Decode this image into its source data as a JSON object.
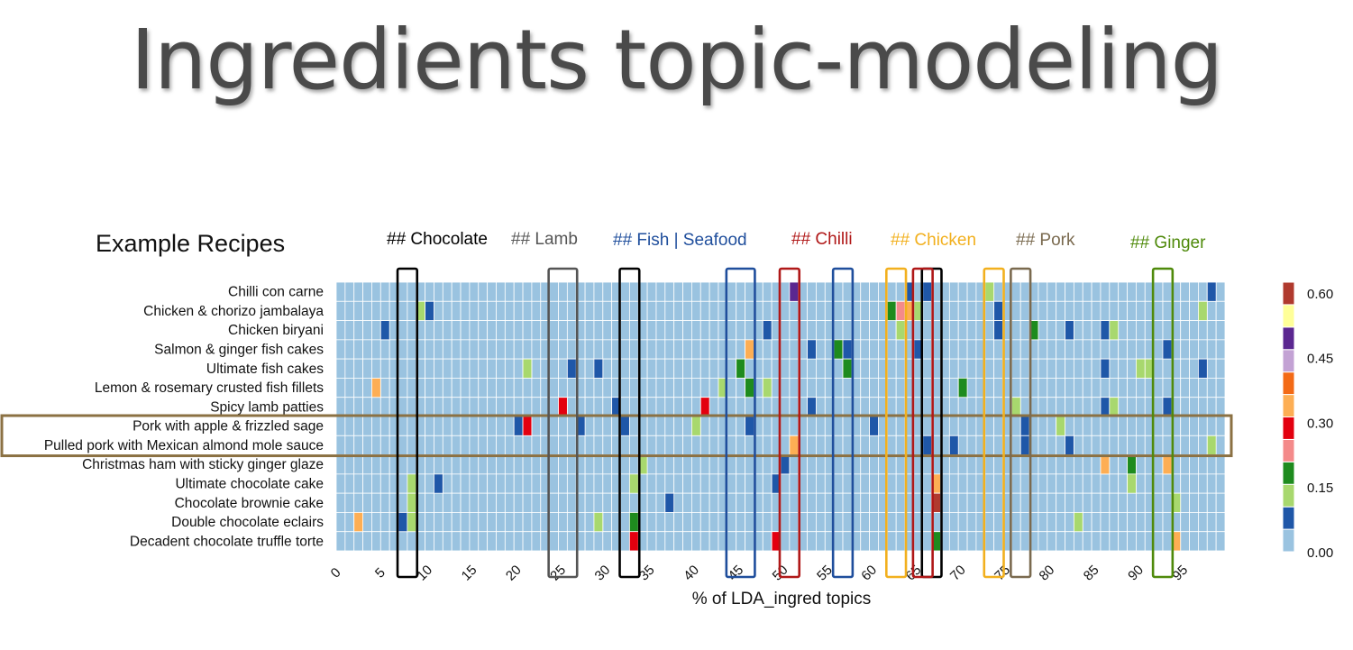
{
  "slide": {
    "title": "Ingredients topic-modeling",
    "side_label": "Example Recipes"
  },
  "chart_data": {
    "type": "heatmap",
    "xlabel": "% of LDA_ingred topics",
    "ylabel": "",
    "x_range": [
      0,
      100
    ],
    "x_ticks": [
      0,
      5,
      10,
      15,
      20,
      25,
      30,
      35,
      40,
      45,
      50,
      55,
      60,
      65,
      70,
      75,
      80,
      85,
      90,
      95
    ],
    "rows": [
      "Chilli con carne",
      "Chicken & chorizo jambalaya",
      "Chicken biryani",
      "Salmon & ginger fish cakes",
      "Ultimate fish cakes",
      "Lemon & rosemary crusted fish fillets",
      "Spicy lamb patties",
      "Pork with apple & frizzled sage",
      "Pulled pork with Mexican almond mole sauce",
      "Christmas ham with sticky ginger glaze",
      "Ultimate chocolate cake",
      "Chocolate brownie cake",
      "Double chocolate eclairs",
      "Decadent chocolate truffle torte"
    ],
    "background_value": 0.0,
    "cells": [
      [
        0,
        51,
        0.5
      ],
      [
        0,
        64,
        0.05
      ],
      [
        0,
        66,
        0.05
      ],
      [
        0,
        73,
        0.12
      ],
      [
        0,
        98,
        0.05
      ],
      [
        1,
        9,
        0.12
      ],
      [
        1,
        10,
        0.05
      ],
      [
        1,
        62,
        0.15
      ],
      [
        1,
        63,
        0.2
      ],
      [
        1,
        64,
        0.3
      ],
      [
        1,
        65,
        0.12
      ],
      [
        1,
        74,
        0.05
      ],
      [
        1,
        97,
        0.12
      ],
      [
        2,
        5,
        0.05
      ],
      [
        2,
        48,
        0.05
      ],
      [
        2,
        63,
        0.12
      ],
      [
        2,
        74,
        0.05
      ],
      [
        2,
        78,
        0.15
      ],
      [
        2,
        82,
        0.05
      ],
      [
        2,
        86,
        0.05
      ],
      [
        2,
        87,
        0.12
      ],
      [
        3,
        46,
        0.35
      ],
      [
        3,
        53,
        0.05
      ],
      [
        3,
        56,
        0.15
      ],
      [
        3,
        57,
        0.05
      ],
      [
        3,
        65,
        0.05
      ],
      [
        3,
        93,
        0.05
      ],
      [
        4,
        21,
        0.12
      ],
      [
        4,
        26,
        0.05
      ],
      [
        4,
        29,
        0.05
      ],
      [
        4,
        45,
        0.15
      ],
      [
        4,
        57,
        0.15
      ],
      [
        4,
        86,
        0.05
      ],
      [
        4,
        90,
        0.12
      ],
      [
        4,
        91,
        0.12
      ],
      [
        4,
        97,
        0.05
      ],
      [
        5,
        4,
        0.3
      ],
      [
        5,
        43,
        0.12
      ],
      [
        5,
        46,
        0.15
      ],
      [
        5,
        48,
        0.12
      ],
      [
        5,
        70,
        0.15
      ],
      [
        6,
        25,
        0.25
      ],
      [
        6,
        31,
        0.05
      ],
      [
        6,
        41,
        0.25
      ],
      [
        6,
        53,
        0.05
      ],
      [
        6,
        76,
        0.12
      ],
      [
        6,
        86,
        0.05
      ],
      [
        6,
        87,
        0.12
      ],
      [
        6,
        93,
        0.05
      ],
      [
        7,
        20,
        0.05
      ],
      [
        7,
        21,
        0.25
      ],
      [
        7,
        27,
        0.05
      ],
      [
        7,
        32,
        0.05
      ],
      [
        7,
        40,
        0.12
      ],
      [
        7,
        46,
        0.05
      ],
      [
        7,
        60,
        0.05
      ],
      [
        7,
        77,
        0.05
      ],
      [
        7,
        81,
        0.12
      ],
      [
        8,
        51,
        0.3
      ],
      [
        8,
        66,
        0.05
      ],
      [
        8,
        69,
        0.05
      ],
      [
        8,
        77,
        0.05
      ],
      [
        8,
        82,
        0.05
      ],
      [
        8,
        98,
        0.12
      ],
      [
        9,
        34,
        0.12
      ],
      [
        9,
        50,
        0.05
      ],
      [
        9,
        86,
        0.3
      ],
      [
        9,
        89,
        0.15
      ],
      [
        9,
        93,
        0.3
      ],
      [
        10,
        8,
        0.12
      ],
      [
        10,
        11,
        0.05
      ],
      [
        10,
        33,
        0.12
      ],
      [
        10,
        49,
        0.05
      ],
      [
        10,
        67,
        0.35
      ],
      [
        10,
        89,
        0.12
      ],
      [
        11,
        8,
        0.12
      ],
      [
        11,
        37,
        0.05
      ],
      [
        11,
        67,
        0.6
      ],
      [
        11,
        94,
        0.12
      ],
      [
        12,
        2,
        0.3
      ],
      [
        12,
        7,
        0.05
      ],
      [
        12,
        8,
        0.12
      ],
      [
        12,
        29,
        0.12
      ],
      [
        12,
        33,
        0.15
      ],
      [
        12,
        83,
        0.12
      ],
      [
        13,
        33,
        0.25
      ],
      [
        13,
        49,
        0.25
      ],
      [
        13,
        67,
        0.15
      ],
      [
        13,
        94,
        0.35
      ]
    ],
    "highlight_rows": [
      7,
      8
    ],
    "topic_annotations": [
      {
        "label": "## Chocolate",
        "color": "#000000",
        "boxes": [
          [
            7,
            8
          ],
          [
            32,
            33
          ],
          [
            66,
            67
          ]
        ]
      },
      {
        "label": "## Lamb",
        "color": "#555555",
        "boxes": [
          [
            24,
            26
          ]
        ]
      },
      {
        "label": "## Fish | Seafood",
        "color": "#1f4e9c",
        "boxes": [
          [
            44,
            46
          ],
          [
            56,
            57
          ]
        ]
      },
      {
        "label": "## Chilli",
        "color": "#b01818",
        "boxes": [
          [
            50,
            51
          ],
          [
            65,
            66
          ]
        ]
      },
      {
        "label": "## Chicken",
        "color": "#f2b01e",
        "boxes": [
          [
            62,
            63
          ],
          [
            73,
            74
          ]
        ]
      },
      {
        "label": "## Pork",
        "color": "#7a6a4f",
        "boxes": [
          [
            76,
            77
          ]
        ]
      },
      {
        "label": "## Ginger",
        "color": "#4f8a0b",
        "boxes": [
          [
            92,
            93
          ]
        ]
      }
    ],
    "legend": {
      "ticks": [
        "0.00",
        "0.15",
        "0.30",
        "0.45",
        "0.60"
      ],
      "colors": [
        "#9ac3e0",
        "#1f57a8",
        "#a8d86e",
        "#1e8b1e",
        "#f48a8a",
        "#e3000f",
        "#fdae54",
        "#f36a16",
        "#c3a2d4",
        "#5b2790",
        "#ffff99",
        "#b03a2e"
      ]
    }
  }
}
